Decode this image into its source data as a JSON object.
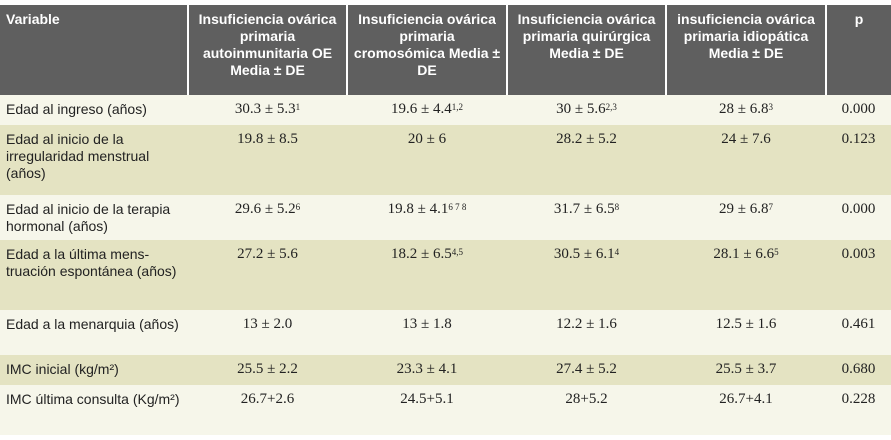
{
  "headers": [
    "Variable",
    "Insuficiencia ovárica primaria autoinmunitaria OE Media ± DE",
    "Insuficiencia ovárica primaria cromosómica Media ± DE",
    "Insuficiencia ovárica primaria quirúrgica Media ± DE",
    "insuficiencia ovárica primaria idiopática Media ± DE",
    "p"
  ],
  "rows": [
    {
      "variable": "Edad al ingreso (años)",
      "c1": "30.3 ± 5.3",
      "s1": "1",
      "c2": "19.6 ± 4.4",
      "s2": "1,2",
      "c3": "30 ± 5.6",
      "s3": "2,3",
      "c4": "28 ± 6.8",
      "s4": "3",
      "p": "0.000"
    },
    {
      "variable": "Edad al inicio de la irregularidad menstrual (años)",
      "c1": "19.8 ± 8.5",
      "c2": "20 ± 6",
      "c3": "28.2 ± 5.2",
      "c4": "24 ± 7.6",
      "p": "0.123"
    },
    {
      "variable": "Edad al inicio de la terapia hormonal (años)",
      "c1": "29.6 ± 5.2",
      "s1": "6",
      "c2": "19.8 ± 4.1",
      "s2": "6 7 8",
      "c3": "31.7 ± 6.5",
      "s3": "8",
      "c4": "29 ± 6.8",
      "s4": "7",
      "p": "0.000"
    },
    {
      "variable": "Edad a la última mens-truación espontánea (años)",
      "c1": "27.2 ± 5.6",
      "c2": "18.2 ± 6.5",
      "s2": "4,5",
      "c3": "30.5 ± 6.1",
      "s3": "4",
      "c4": "28.1 ± 6.6",
      "s4": "5",
      "p": "0.003"
    },
    {
      "variable": "Edad a la menarquia (años)",
      "c1": "13 ± 2.0",
      "c2": "13 ± 1.8",
      "c3": "12.2 ± 1.6",
      "c4": "12.5 ± 1.6",
      "p": "0.461"
    },
    {
      "variable": "IMC inicial (kg/m²)",
      "c1": "25.5 ± 2.2",
      "c2": "23.3 ± 4.1",
      "c3": "27.4 ± 5.2",
      "c4": "25.5 ± 3.7",
      "p": "0.680"
    },
    {
      "variable": "IMC última consulta (Kg/m²)",
      "c1": "26.7+2.6",
      "c2": "24.5+5.1",
      "c3": "28+5.2",
      "c4": "26.7+4.1",
      "p": "0.228"
    }
  ]
}
